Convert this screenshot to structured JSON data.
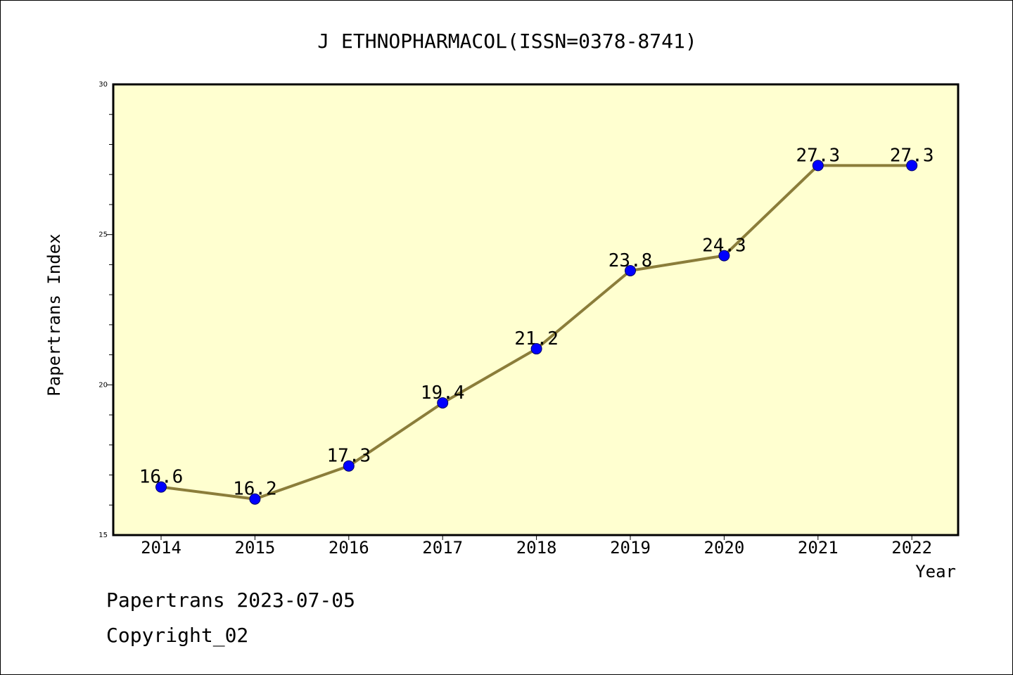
{
  "chart_data": {
    "type": "line",
    "title": "J ETHNOPHARMACOL(ISSN=0378-8741)",
    "xlabel": "Year",
    "ylabel": "Papertrans Index",
    "categories": [
      "2014",
      "2015",
      "2016",
      "2017",
      "2018",
      "2019",
      "2020",
      "2021",
      "2022"
    ],
    "series": [
      {
        "values": [
          16.6,
          16.2,
          17.3,
          19.4,
          21.2,
          23.8,
          24.3,
          27.3,
          27.3
        ],
        "data_labels": [
          "16.6",
          "16.2",
          "17.3",
          "19.4",
          "21.2",
          "23.8",
          "24.3",
          "27.3",
          "27.3"
        ]
      }
    ],
    "ylim": [
      15,
      30
    ],
    "yticks": [
      "15",
      "20",
      "25",
      "30"
    ],
    "grid": false,
    "legend": "none",
    "colors": {
      "line": "#8B7D3A",
      "marker": "#0000FF",
      "plot_background": "#FFFFD0"
    }
  },
  "footer": {
    "date_text": "Papertrans 2023-07-05",
    "copyright_text": "Copyright_02"
  }
}
